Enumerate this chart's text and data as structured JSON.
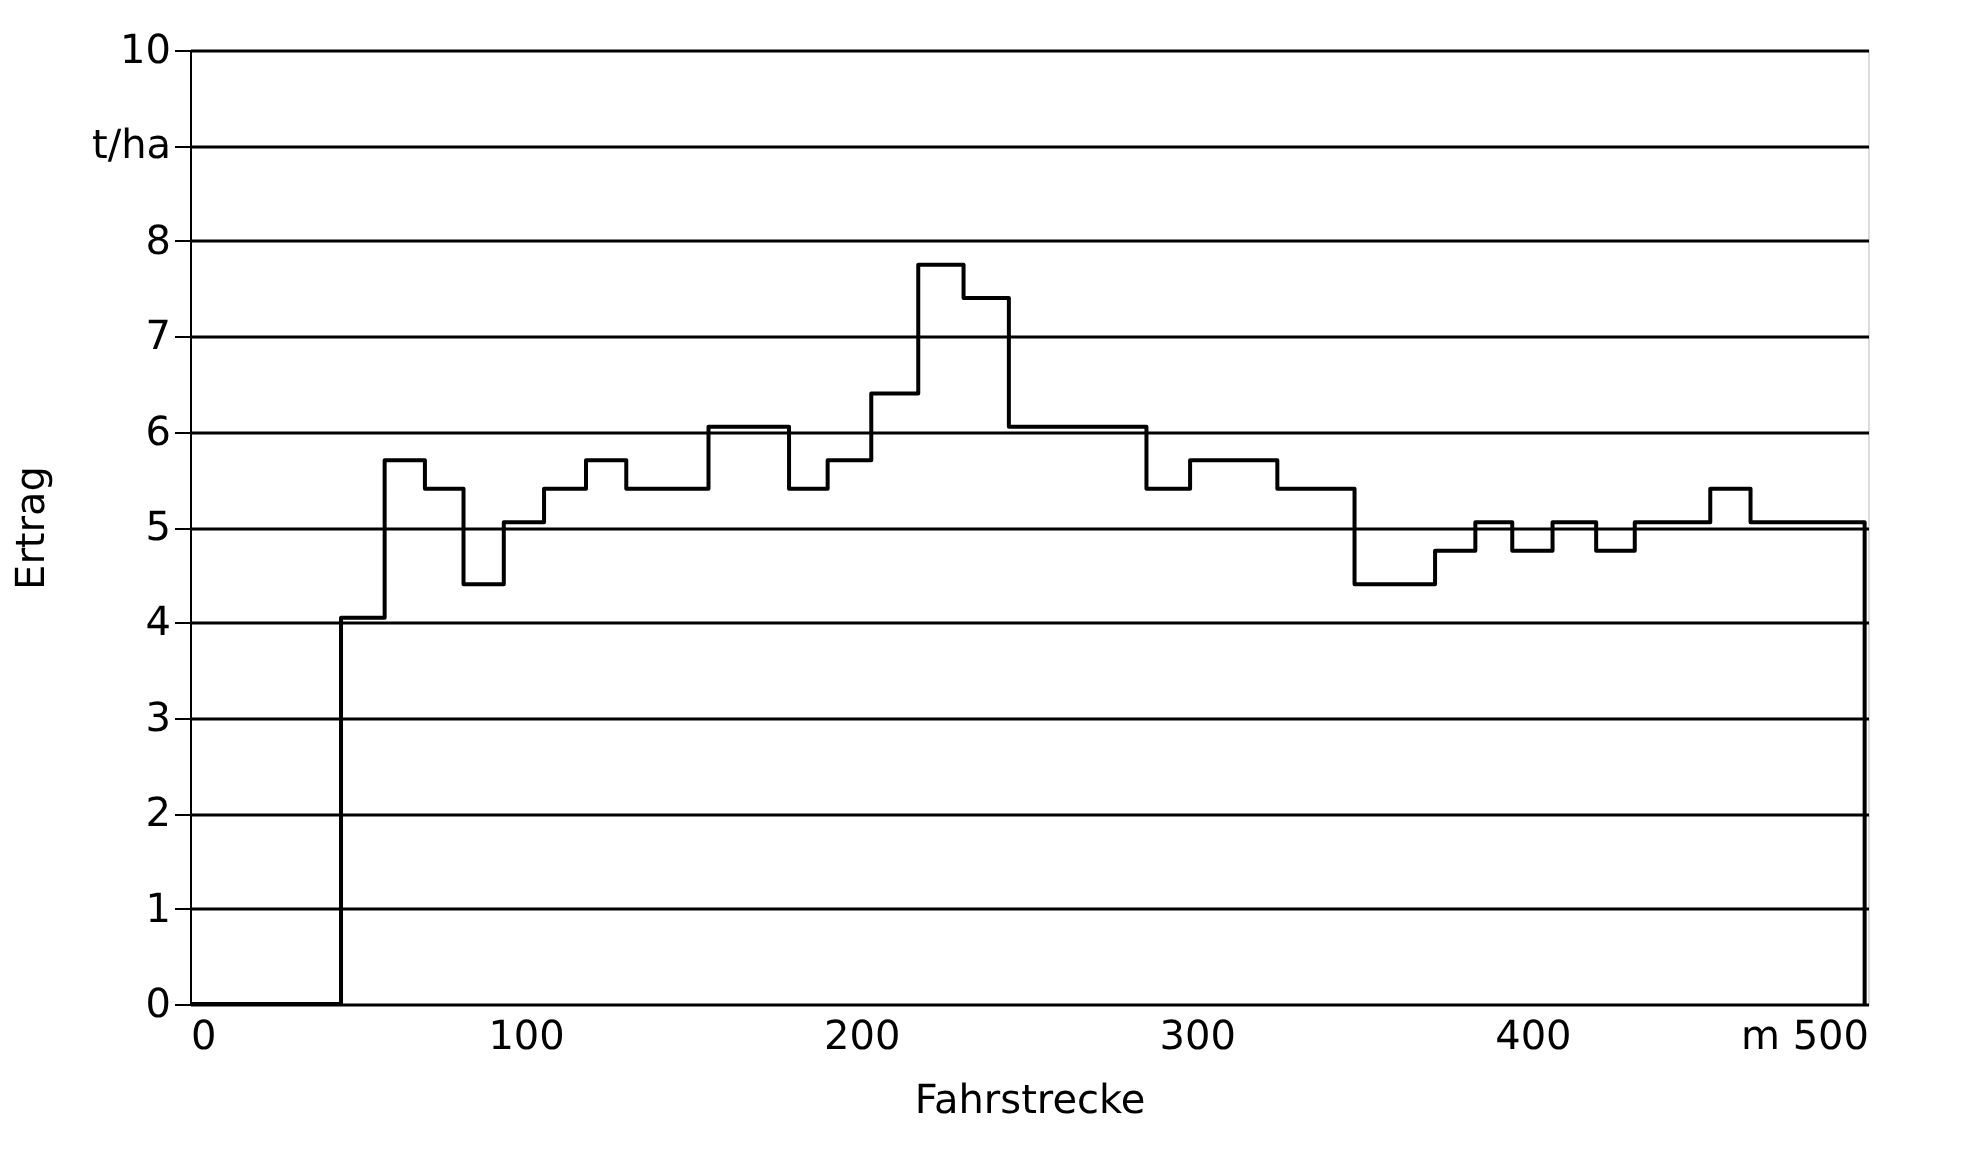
{
  "chart_data": {
    "type": "step",
    "xlabel": "Fahrstrecke",
    "ylabel": "Ertrag",
    "x": [
      0,
      45,
      58,
      70,
      81.5,
      93.5,
      105.5,
      118,
      130,
      154.5,
      178.5,
      190,
      203,
      217,
      230.5,
      244,
      285,
      298,
      324,
      347,
      371,
      383,
      394,
      406,
      419,
      430.5,
      453,
      465,
      499
    ],
    "series": [
      {
        "color": "#000000",
        "values": [
          0,
          4.05,
          5.7,
          5.4,
          4.4,
          5.05,
          5.4,
          5.7,
          5.4,
          6.05,
          5.4,
          5.7,
          6.4,
          7.75,
          7.4,
          6.05,
          5.4,
          5.7,
          5.4,
          4.4,
          4.75,
          5.05,
          4.75,
          5.05,
          4.75,
          5.05,
          5.4,
          5.05,
          0
        ]
      }
    ],
    "xlim": [
      0,
      500
    ],
    "xticks": [
      0,
      100,
      200,
      300,
      400,
      {
        "value": 500,
        "label": "m 500"
      }
    ],
    "ylim": [
      0,
      10
    ],
    "yticks": [
      0,
      1,
      2,
      3,
      4,
      5,
      6,
      7,
      8,
      {
        "value": 9,
        "label": "t/ha"
      },
      10
    ],
    "grid": "y",
    "line_style": "solid",
    "marker": "none"
  }
}
